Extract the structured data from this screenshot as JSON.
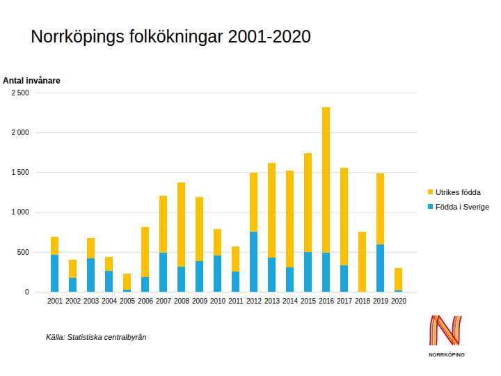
{
  "chart_data": {
    "type": "bar",
    "stacked": true,
    "title": "Norrköpings folkökningar 2001-2020",
    "y_label": "Antal invånare",
    "source": "Källa: Statistiska centralbyrån",
    "logo_text": "NORRKÖPING",
    "categories": [
      "2001",
      "2002",
      "2003",
      "2004",
      "2005",
      "2006",
      "2007",
      "2008",
      "2009",
      "2010",
      "2011",
      "2012",
      "2013",
      "2014",
      "2015",
      "2016",
      "2017",
      "2018",
      "2019",
      "2020"
    ],
    "series": [
      {
        "name": "Födda i Sverige",
        "color": "#1aa7e0",
        "values": [
          463,
          175,
          420,
          262,
          26,
          184,
          490,
          315,
          385,
          455,
          253,
          752,
          428,
          306,
          498,
          490,
          332,
          0,
          594,
          20
        ]
      },
      {
        "name": "Utrikes födda",
        "color": "#ffc000",
        "values": [
          227,
          227,
          253,
          175,
          201,
          629,
          716,
          1057,
          804,
          332,
          315,
          743,
          1189,
          1215,
          1242,
          1826,
          1224,
          752,
          892,
          277
        ]
      }
    ],
    "ylim": [
      0,
      2500
    ],
    "yticks": [
      0,
      500,
      {
        "value": 1000,
        "label": "1 000"
      },
      {
        "value": 1500,
        "label": "1 500"
      },
      {
        "value": 2000,
        "label": "2 000"
      },
      {
        "value": 2500,
        "label": "2 500"
      }
    ],
    "grid": true,
    "legend": "right"
  }
}
